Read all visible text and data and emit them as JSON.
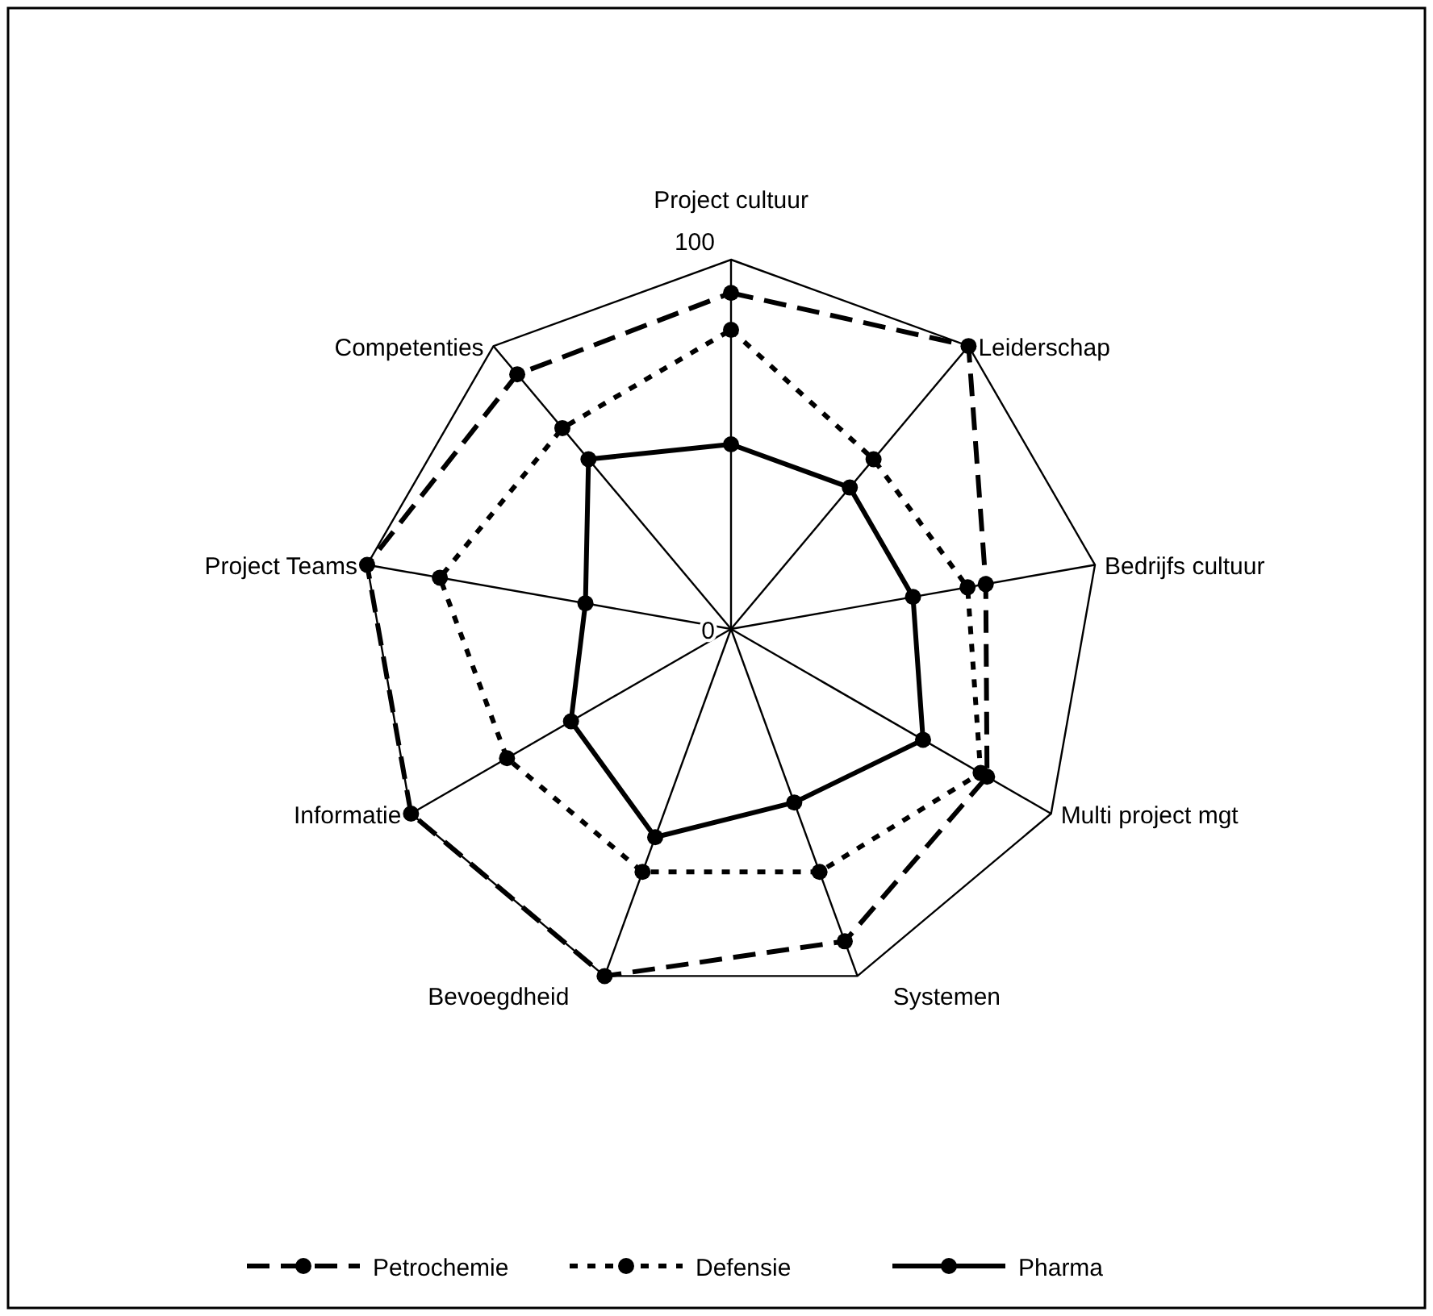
{
  "chart_data": {
    "type": "radar",
    "categories": [
      "Project cultuur",
      "Leiderschap",
      "Bedrijfs cultuur",
      "Multi project mgt",
      "Systemen",
      "Bevoegdheid",
      "Informatie",
      "Project Teams",
      "Competenties"
    ],
    "ylim": [
      0,
      100
    ],
    "yticks": [
      0,
      100
    ],
    "grid": false,
    "legend": "bottom",
    "marker": "circle",
    "series": [
      {
        "name": "Petrochemie",
        "color": "#000000",
        "line_style": "dashed",
        "values": [
          91,
          100,
          70,
          80,
          90,
          100,
          100,
          100,
          90
        ]
      },
      {
        "name": "Defensie",
        "color": "#000000",
        "line_style": "dotted",
        "values": [
          81,
          60,
          65,
          78,
          70,
          70,
          70,
          80,
          71
        ]
      },
      {
        "name": "Pharma",
        "color": "#000000",
        "line_style": "solid",
        "values": [
          50,
          50,
          50,
          60,
          50,
          60,
          50,
          40,
          60
        ]
      }
    ]
  }
}
